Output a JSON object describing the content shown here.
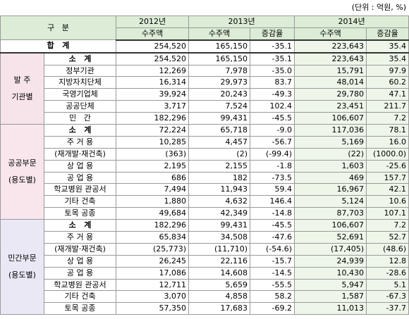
{
  "unit": "(단위 : 억원, %)",
  "header": {
    "title": "구   분",
    "years": [
      "2012년",
      "2013년",
      "2014년"
    ],
    "sub": [
      "수주액",
      "수주액",
      "증감율",
      "수주액",
      "증감율"
    ]
  },
  "total": {
    "label": "합   계",
    "values": [
      "254,520",
      "165,150",
      "-35.1",
      "223,643",
      "35.4"
    ]
  },
  "groups": [
    {
      "label": [
        "발 주",
        "기관별"
      ],
      "rows": [
        {
          "label": "소   계",
          "values": [
            "254,520",
            "165,150",
            "-35.1",
            "223,643",
            "35.4"
          ]
        },
        {
          "label": "정부기관",
          "values": [
            "12,269",
            "7,978",
            "-35.0",
            "15,791",
            "97.9"
          ]
        },
        {
          "label": "지방자치단체",
          "values": [
            "16,314",
            "29,973",
            "83.7",
            "48,014",
            "60.2"
          ]
        },
        {
          "label": "국영기업체",
          "values": [
            "39,924",
            "20,243",
            "-49.3",
            "29,780",
            "47.1"
          ]
        },
        {
          "label": "공공단체",
          "values": [
            "3,717",
            "7,524",
            "102.4",
            "23,451",
            "211.7"
          ]
        },
        {
          "label": "민   간",
          "values": [
            "182,296",
            "99,431",
            "-45.5",
            "106,607",
            "7.2"
          ]
        }
      ]
    },
    {
      "label": [
        "공공부문",
        "(용도별)"
      ],
      "rows": [
        {
          "label": "소   계",
          "values": [
            "72,224",
            "65,718",
            "-9.0",
            "117,036",
            "78.1"
          ]
        },
        {
          "label": "주 거 용",
          "values": [
            "10,285",
            "4,457",
            "-56.7",
            "5,169",
            "16.0"
          ]
        },
        {
          "label": "(재개발·재건축)",
          "values": [
            "(363)",
            "(2)",
            "(-99.4)",
            "(22)",
            "(1000.0)"
          ]
        },
        {
          "label": "상 업 용",
          "values": [
            "2,195",
            "2,155",
            "-1.8",
            "1,603",
            "-25.6"
          ]
        },
        {
          "label": "공 업 용",
          "values": [
            "686",
            "182",
            "-73.5",
            "469",
            "157.7"
          ]
        },
        {
          "label": "학교병원 관공서",
          "values": [
            "7,494",
            "11,943",
            "59.4",
            "16,967",
            "42.1"
          ]
        },
        {
          "label": "기타 건축",
          "values": [
            "1,880",
            "4,632",
            "146.4",
            "5,124",
            "10.6"
          ]
        },
        {
          "label": "토목 공종",
          "values": [
            "49,684",
            "42,349",
            "-14.8",
            "87,703",
            "107.1"
          ]
        }
      ]
    },
    {
      "label": [
        "민간부문",
        "(용도별)"
      ],
      "rows": [
        {
          "label": "소   계",
          "values": [
            "182,296",
            "99,431",
            "-45.5",
            "106,607",
            "7.2"
          ]
        },
        {
          "label": "주 거 용",
          "values": [
            "65,834",
            "34,508",
            "-47.6",
            "52,691",
            "52.7"
          ]
        },
        {
          "label": "(재개발·재건축)",
          "values": [
            "(25,773)",
            "(11,710)",
            "(-54.6)",
            "(17,405)",
            "(48.6)"
          ]
        },
        {
          "label": "상 업 용",
          "values": [
            "26,245",
            "22,116",
            "-15.7",
            "24,939",
            "12.8"
          ]
        },
        {
          "label": "공 업 용",
          "values": [
            "17,086",
            "14,608",
            "-14.5",
            "10,430",
            "-28.6"
          ]
        },
        {
          "label": "학교병원 관공서",
          "values": [
            "12,711",
            "5,659",
            "-55.5",
            "5,947",
            "5.1"
          ]
        },
        {
          "label": "기타 건축",
          "values": [
            "3,070",
            "4,858",
            "58.2",
            "1,587",
            "-67.3"
          ]
        },
        {
          "label": "토목 공종",
          "values": [
            "57,350",
            "17,683",
            "-69.2",
            "11,013",
            "-37.7"
          ]
        }
      ]
    }
  ]
}
